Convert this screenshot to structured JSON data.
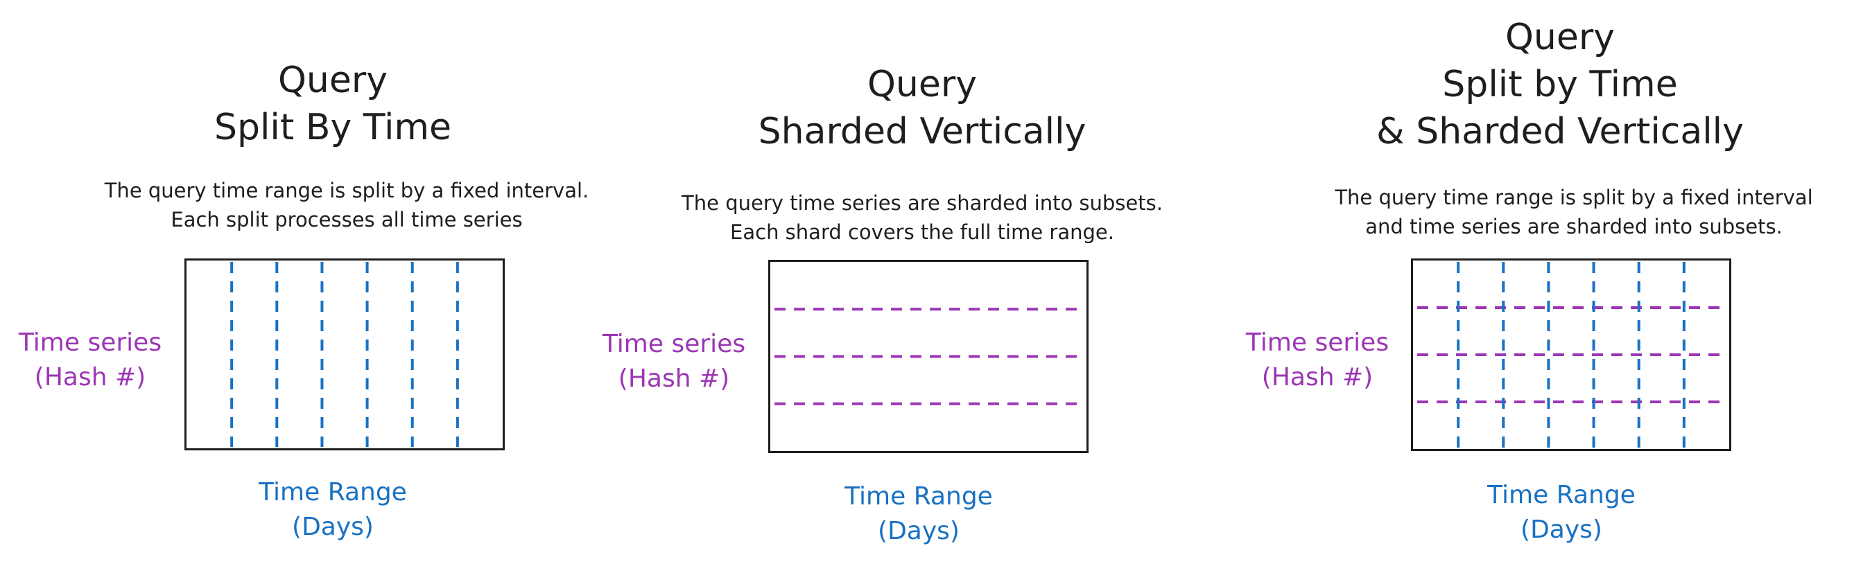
{
  "colors": {
    "text": "#1e1e1e",
    "time_series": "#9c36b5",
    "time_range": "#1971c2"
  },
  "panels": [
    {
      "title_lines": [
        "Query",
        "Split By Time"
      ],
      "description_lines": [
        "The query time range is split by a fixed interval.",
        "Each split processes all time series"
      ],
      "y_label_lines": [
        "Time series",
        "(Hash #)"
      ],
      "x_label_lines": [
        "Time Range",
        "(Days)"
      ],
      "vertical_splits": 6,
      "horizontal_shards": 0
    },
    {
      "title_lines": [
        "Query",
        "Sharded Vertically"
      ],
      "description_lines": [
        "The query time series are sharded into subsets.",
        "Each shard covers the full time range."
      ],
      "y_label_lines": [
        "Time series",
        "(Hash #)"
      ],
      "x_label_lines": [
        "Time Range",
        "(Days)"
      ],
      "vertical_splits": 0,
      "horizontal_shards": 3
    },
    {
      "title_lines": [
        "Query",
        "Split by Time",
        "& Sharded Vertically"
      ],
      "description_lines": [
        "The query time range is split by a fixed interval",
        "and time series are sharded into subsets."
      ],
      "y_label_lines": [
        "Time series",
        "(Hash #)"
      ],
      "x_label_lines": [
        "Time Range",
        "(Days)"
      ],
      "vertical_splits": 6,
      "horizontal_shards": 3
    }
  ]
}
